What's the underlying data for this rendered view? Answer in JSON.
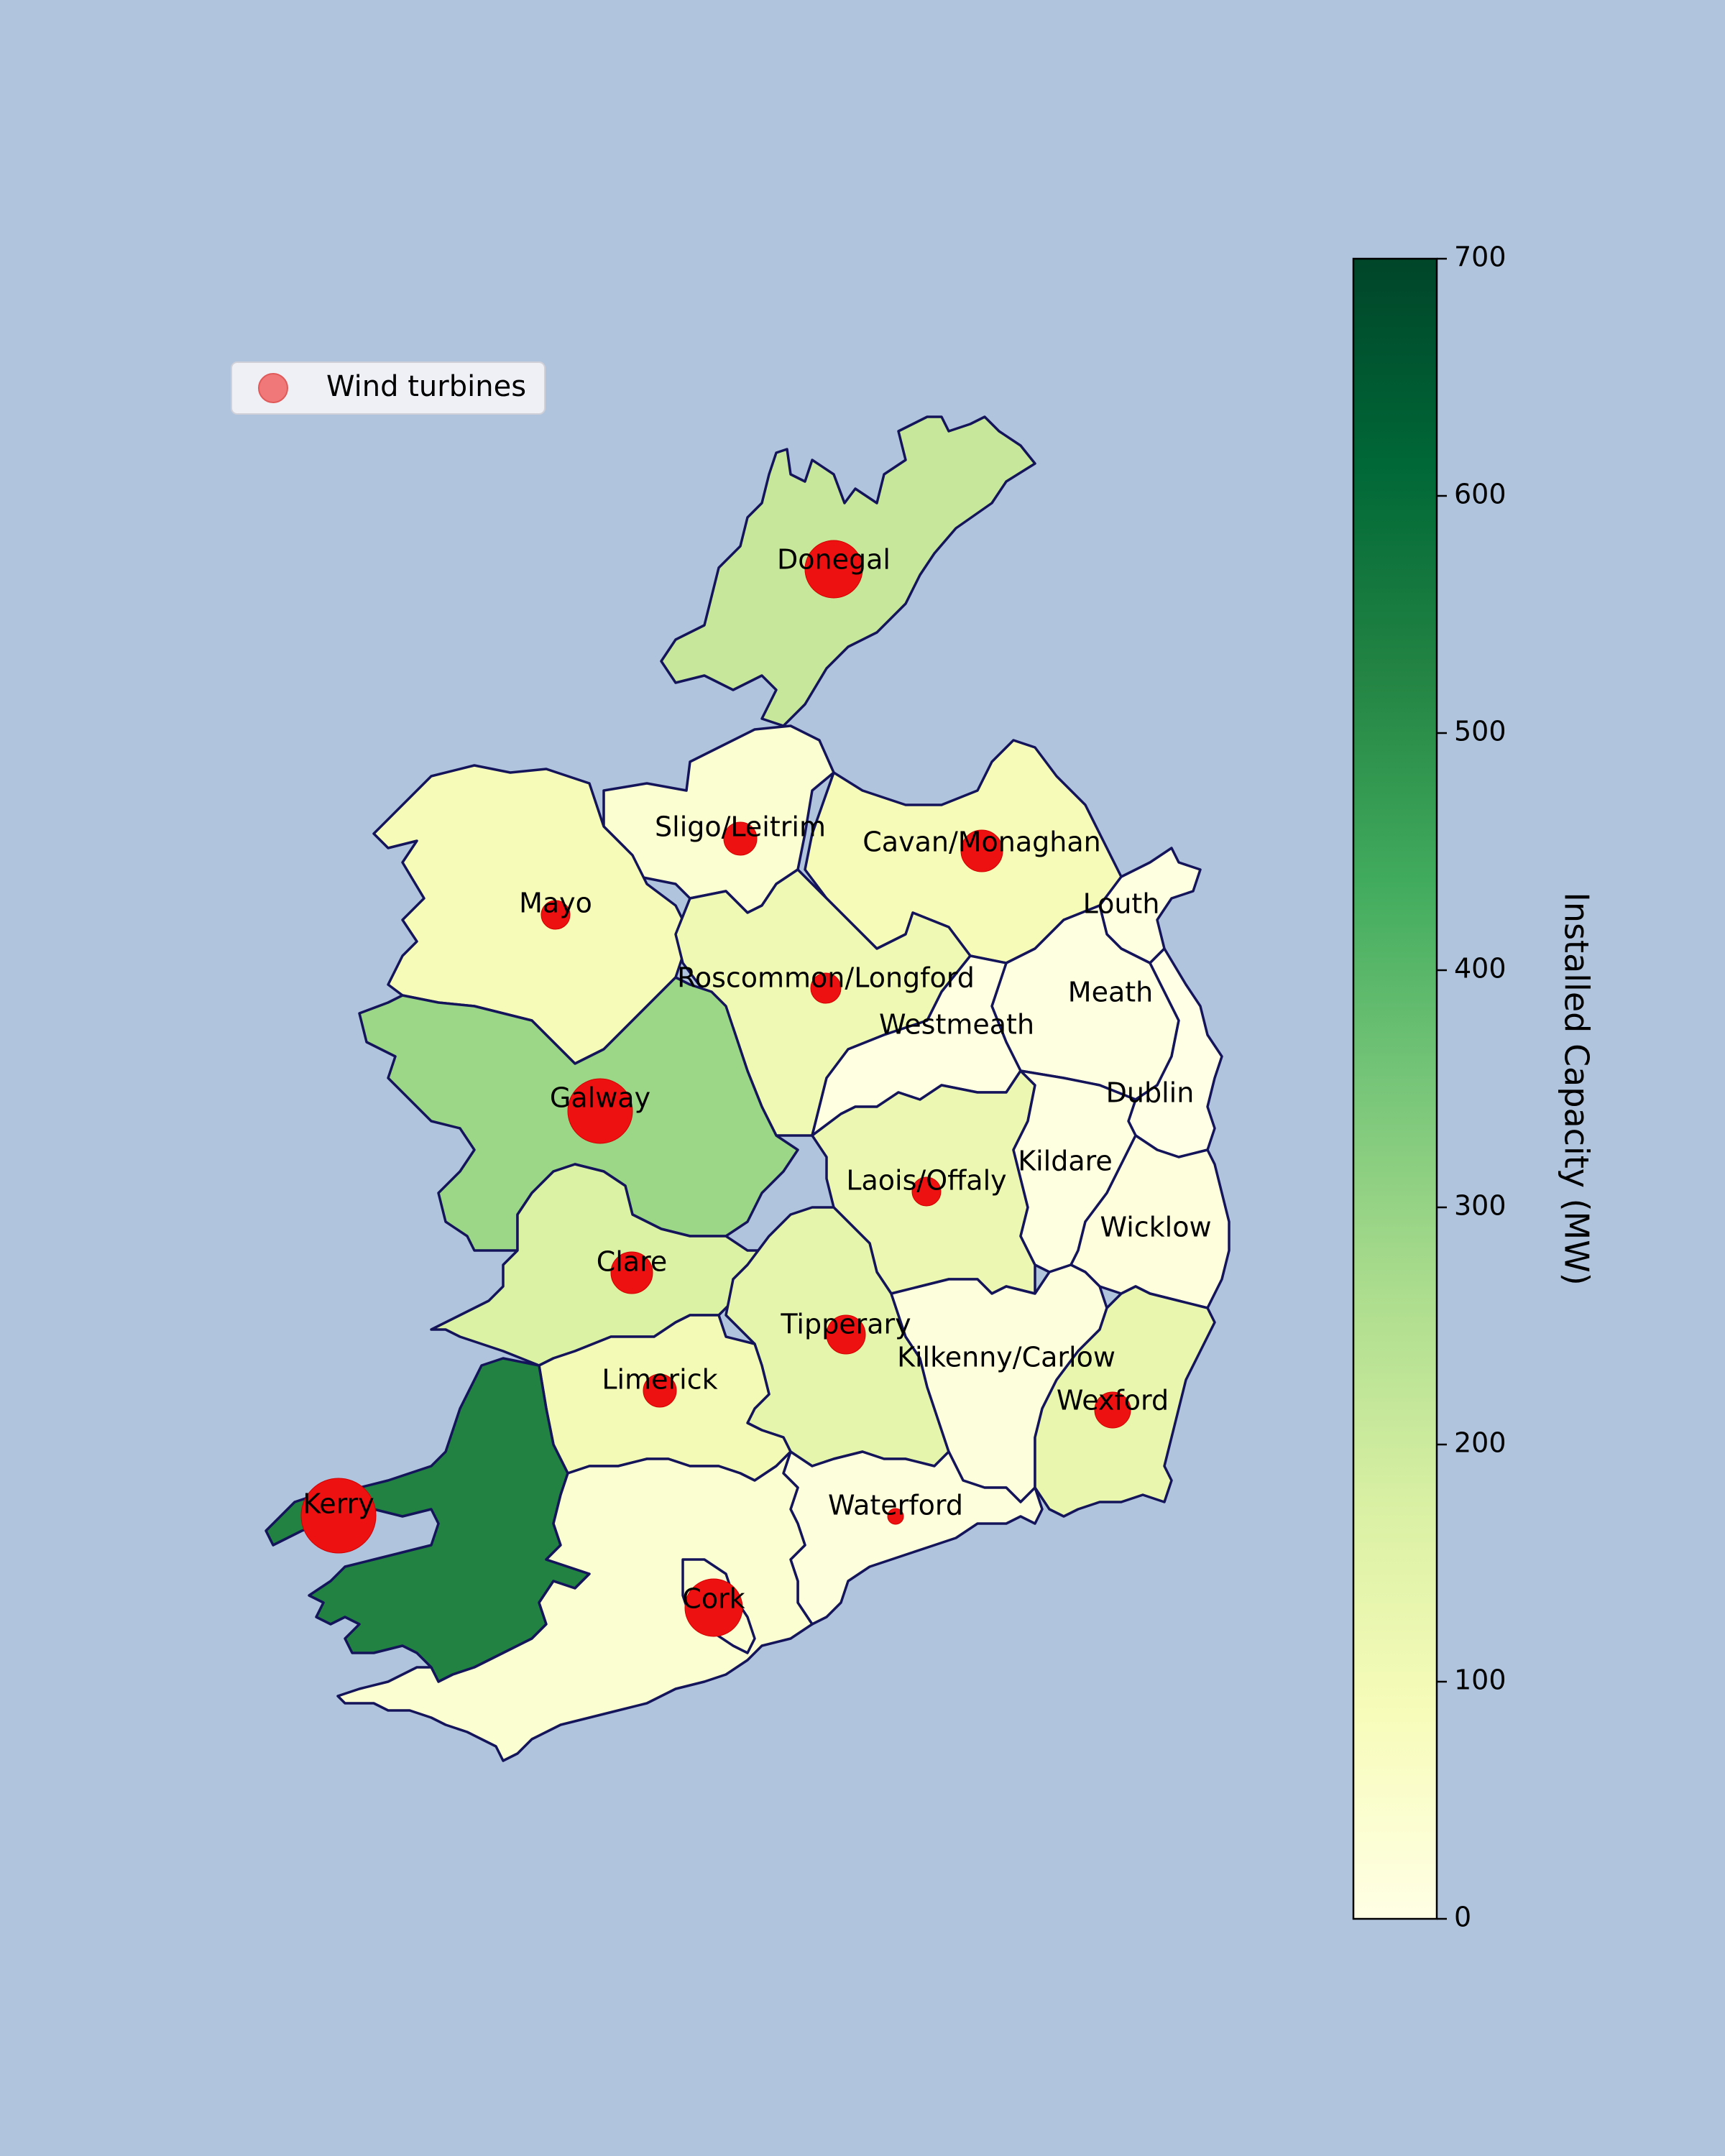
{
  "map": {
    "colorbar": {
      "label": "Installed Capacity (MW)",
      "min": 0,
      "max": 700,
      "ticks": [
        "0",
        "100",
        "200",
        "300",
        "400",
        "500",
        "600",
        "700"
      ],
      "colormap": [
        "#ffffe5",
        "#f7fcb9",
        "#d9f0a3",
        "#addd8e",
        "#78c679",
        "#41ab5d",
        "#238443",
        "#006837",
        "#004529"
      ]
    },
    "legend": {
      "label": "Wind turbines",
      "marker_color": "#f07878"
    },
    "colors": {
      "sea": "#b0c4de",
      "border": "#14145a",
      "marker": "#ee1111"
    },
    "regions": [
      {
        "name": "Donegal",
        "capacity": 210,
        "marker_size": "large"
      },
      {
        "name": "Sligo/Leitrim",
        "capacity": 40,
        "marker_size": "small"
      },
      {
        "name": "Cavan/Monaghan",
        "capacity": 90,
        "marker_size": "small"
      },
      {
        "name": "Mayo",
        "capacity": 90,
        "marker_size": "small"
      },
      {
        "name": "Louth",
        "capacity": 10,
        "marker_size": "none"
      },
      {
        "name": "Roscommon/Longford",
        "capacity": 110,
        "marker_size": "small"
      },
      {
        "name": "Meath",
        "capacity": 10,
        "marker_size": "none"
      },
      {
        "name": "Westmeath",
        "capacity": 5,
        "marker_size": "none"
      },
      {
        "name": "Galway",
        "capacity": 290,
        "marker_size": "large"
      },
      {
        "name": "Dublin",
        "capacity": 0,
        "marker_size": "none"
      },
      {
        "name": "Laois/Offaly",
        "capacity": 120,
        "marker_size": "small"
      },
      {
        "name": "Kildare",
        "capacity": 10,
        "marker_size": "none"
      },
      {
        "name": "Wicklow",
        "capacity": 15,
        "marker_size": "none"
      },
      {
        "name": "Clare",
        "capacity": 170,
        "marker_size": "small"
      },
      {
        "name": "Tipperary",
        "capacity": 140,
        "marker_size": "small"
      },
      {
        "name": "Kilkenny/Carlow",
        "capacity": 20,
        "marker_size": "none"
      },
      {
        "name": "Limerick",
        "capacity": 100,
        "marker_size": "small"
      },
      {
        "name": "Wexford",
        "capacity": 130,
        "marker_size": "small"
      },
      {
        "name": "Kerry",
        "capacity": 530,
        "marker_size": "large"
      },
      {
        "name": "Waterford",
        "capacity": 20,
        "marker_size": "tiny"
      },
      {
        "name": "Cork",
        "capacity": 40,
        "marker_size": "large"
      }
    ]
  }
}
